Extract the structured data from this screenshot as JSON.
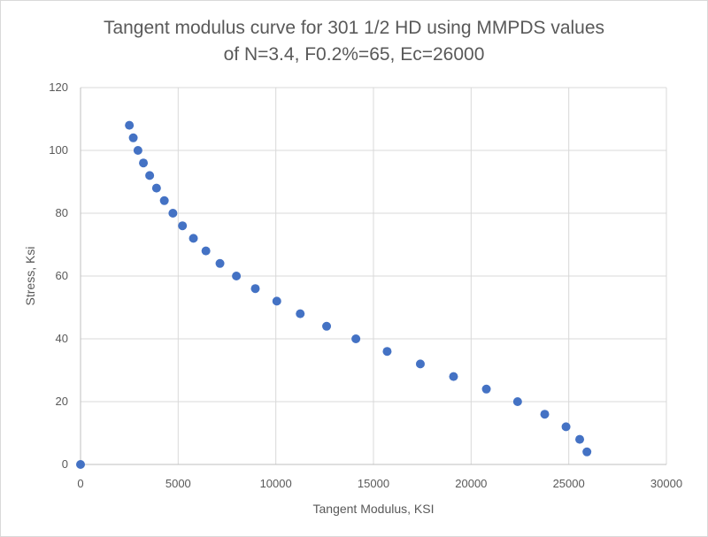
{
  "chart_data": {
    "type": "scatter",
    "title": [
      "Tangent modulus curve for 301 1/2 HD using MMPDS values",
      "of N=3.4, F0.2%=65, Ec=26000"
    ],
    "xlabel": "Tangent Modulus, KSI",
    "ylabel": "Stress, Ksi",
    "xlim": [
      0,
      30000
    ],
    "ylim": [
      0,
      120
    ],
    "x_ticks": [
      0,
      5000,
      10000,
      15000,
      20000,
      25000,
      30000
    ],
    "y_ticks": [
      0,
      20,
      40,
      60,
      80,
      100,
      120
    ],
    "x_tick_labels": [
      "0",
      "5000",
      "10000",
      "15000",
      "20000",
      "25000",
      "30000"
    ],
    "y_tick_labels": [
      "0",
      "20",
      "40",
      "60",
      "80",
      "100",
      "120"
    ],
    "grid": "vertical and horizontal",
    "legend": "none",
    "series": [
      {
        "name": "Tangent modulus",
        "color": "#4472c4",
        "points": [
          {
            "x": 0,
            "y": 0
          },
          {
            "x": 25930,
            "y": 4
          },
          {
            "x": 25560,
            "y": 8
          },
          {
            "x": 24860,
            "y": 12
          },
          {
            "x": 23770,
            "y": 16
          },
          {
            "x": 22380,
            "y": 20
          },
          {
            "x": 20780,
            "y": 24
          },
          {
            "x": 19100,
            "y": 28
          },
          {
            "x": 17400,
            "y": 32
          },
          {
            "x": 15700,
            "y": 36
          },
          {
            "x": 14100,
            "y": 40
          },
          {
            "x": 12600,
            "y": 44
          },
          {
            "x": 11250,
            "y": 48
          },
          {
            "x": 10050,
            "y": 52
          },
          {
            "x": 8950,
            "y": 56
          },
          {
            "x": 7980,
            "y": 60
          },
          {
            "x": 7140,
            "y": 64
          },
          {
            "x": 6420,
            "y": 68
          },
          {
            "x": 5780,
            "y": 72
          },
          {
            "x": 5220,
            "y": 76
          },
          {
            "x": 4730,
            "y": 80
          },
          {
            "x": 4290,
            "y": 84
          },
          {
            "x": 3890,
            "y": 88
          },
          {
            "x": 3540,
            "y": 92
          },
          {
            "x": 3220,
            "y": 96
          },
          {
            "x": 2940,
            "y": 100
          },
          {
            "x": 2700,
            "y": 104
          },
          {
            "x": 2500,
            "y": 108
          }
        ]
      }
    ]
  }
}
